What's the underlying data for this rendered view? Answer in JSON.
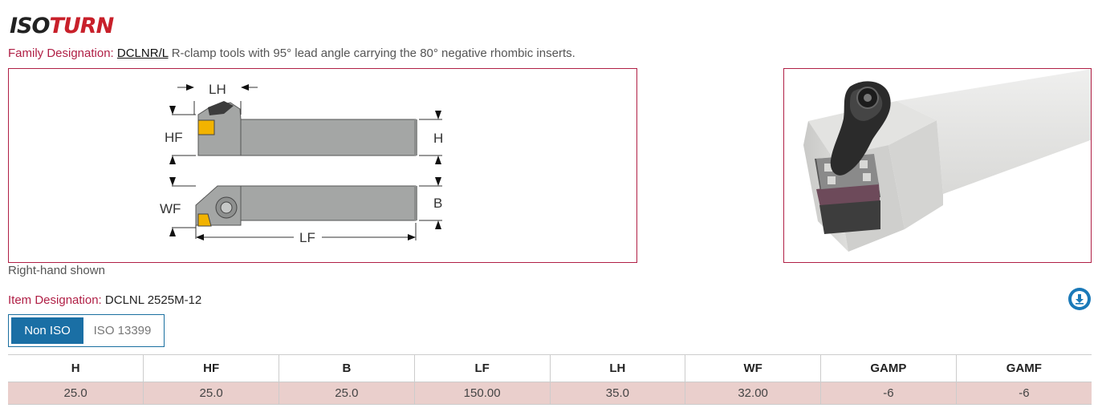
{
  "brand": {
    "logo_part1": "ISO",
    "logo_part2": "TURN",
    "accent_color": "#b01f45",
    "primary_color": "#1a6fa5"
  },
  "family": {
    "label": "Family Designation:",
    "code": "DCLNR/L",
    "description": "R-clamp tools with 95° lead angle carrying the 80° negative rhombic inserts."
  },
  "drawing": {
    "labels": {
      "lh": "LH",
      "hf": "HF",
      "h": "H",
      "wf": "WF",
      "b": "B",
      "lf": "LF"
    },
    "caption": "Right-hand shown"
  },
  "item": {
    "label": "Item Designation:",
    "value": "DCLNL 2525M-12",
    "download_icon": "download-icon"
  },
  "toggle": {
    "options": [
      "Non ISO",
      "ISO 13399"
    ],
    "selected": "Non ISO"
  },
  "table": {
    "headers": [
      "H",
      "HF",
      "B",
      "LF",
      "LH",
      "WF",
      "GAMP",
      "GAMF"
    ],
    "rows": [
      [
        "25.0",
        "25.0",
        "25.0",
        "150.00",
        "35.0",
        "32.00",
        "-6",
        "-6"
      ]
    ]
  }
}
